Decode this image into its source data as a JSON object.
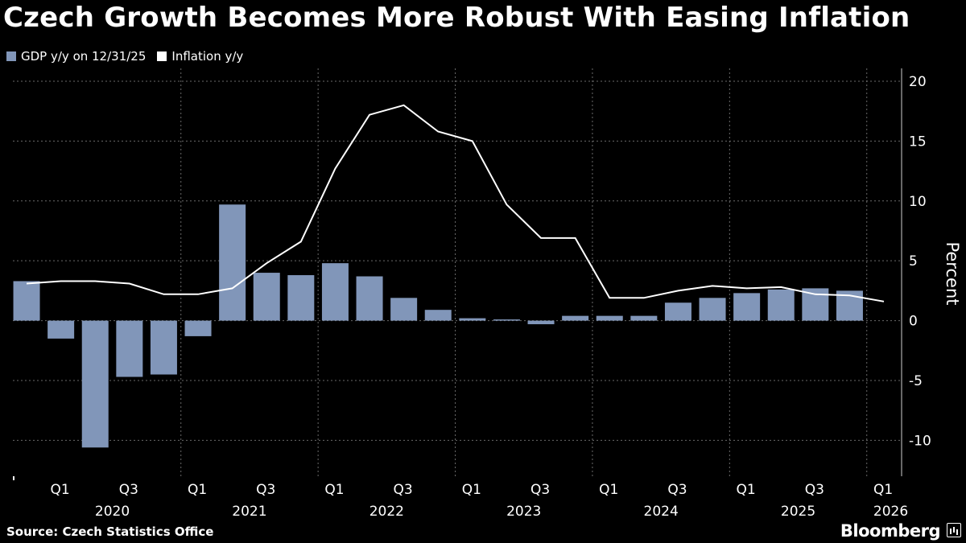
{
  "title": "Czech Growth Becomes More Robust With Easing Inflation",
  "legend": [
    {
      "label": "GDP y/y on 12/31/25",
      "color": "#8196b9"
    },
    {
      "label": "Inflation y/y",
      "color": "#ffffff"
    }
  ],
  "source": "Source: Czech Statistics Office",
  "brand": "Bloomberg",
  "chart_data": {
    "type": "bar",
    "title": "Czech Growth Becomes More Robust With Easing Inflation",
    "ylabel": "Percent",
    "ylim": [
      -13,
      20
    ],
    "yticks": [
      20,
      15,
      10,
      5,
      0,
      -5,
      -10
    ],
    "grid": true,
    "legend_position": "top-left",
    "quarters": [
      "2019 Q4",
      "2020 Q1",
      "2020 Q2",
      "2020 Q3",
      "2020 Q4",
      "2021 Q1",
      "2021 Q2",
      "2021 Q3",
      "2021 Q4",
      "2022 Q1",
      "2022 Q2",
      "2022 Q3",
      "2022 Q4",
      "2023 Q1",
      "2023 Q2",
      "2023 Q3",
      "2023 Q4",
      "2024 Q1",
      "2024 Q2",
      "2024 Q3",
      "2024 Q4",
      "2025 Q1",
      "2025 Q2",
      "2025 Q3",
      "2025 Q4",
      "2026 Q1"
    ],
    "x_tick_labels": [
      "Q1",
      "Q3",
      "Q1",
      "Q3",
      "Q1",
      "Q3",
      "Q1",
      "Q3",
      "Q1",
      "Q3",
      "Q1",
      "Q3",
      "Q1"
    ],
    "x_tick_quarter_index": [
      1,
      3,
      5,
      7,
      9,
      11,
      13,
      15,
      17,
      19,
      21,
      23,
      25
    ],
    "year_labels": [
      "2020",
      "2021",
      "2022",
      "2023",
      "2024",
      "2025",
      "2026"
    ],
    "series": [
      {
        "name": "GDP y/y on 12/31/25",
        "type": "bar",
        "color": "#8196b9",
        "values": [
          3.3,
          -1.5,
          -10.6,
          -4.7,
          -4.5,
          -1.3,
          9.7,
          4.0,
          3.8,
          4.8,
          3.7,
          1.9,
          0.9,
          0.2,
          0.1,
          -0.3,
          0.4,
          0.4,
          0.4,
          1.5,
          1.9,
          2.3,
          2.6,
          2.7,
          2.5,
          null
        ]
      },
      {
        "name": "Inflation y/y",
        "type": "line",
        "color": "#ffffff",
        "values": [
          3.1,
          3.3,
          3.3,
          3.1,
          2.2,
          2.2,
          2.7,
          4.8,
          6.6,
          12.7,
          17.2,
          18.0,
          15.8,
          15.0,
          9.7,
          6.9,
          6.9,
          1.9,
          1.9,
          2.5,
          2.9,
          2.7,
          2.8,
          2.2,
          2.1,
          1.6
        ]
      }
    ]
  }
}
